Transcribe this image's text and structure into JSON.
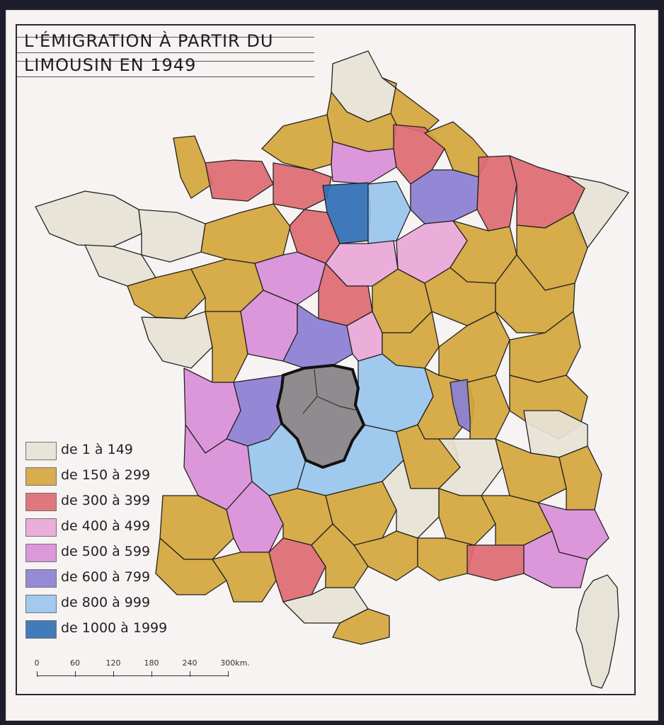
{
  "title": {
    "line1": "L'ÉMIGRATION À PARTIR DU",
    "line2": "LIMOUSIN EN 1949"
  },
  "legend": [
    {
      "label": "de 1 à 149",
      "color": "#e7e3d6"
    },
    {
      "label": "de 150 à 299",
      "color": "#d4a63c"
    },
    {
      "label": "de 300 à 399",
      "color": "#de6a72"
    },
    {
      "label": "de 400 à 499",
      "color": "#e9a7d8"
    },
    {
      "label": "de 500 à 599",
      "color": "#d98fd8"
    },
    {
      "label": "de 600 à 799",
      "color": "#8b7fd4"
    },
    {
      "label": "de 800 à 999",
      "color": "#98c6ee"
    },
    {
      "label": "de 1000 à 1999",
      "color": "#2f6fb6"
    }
  ],
  "scale": {
    "ticks": [
      "0",
      "60",
      "120",
      "180",
      "240",
      "300km."
    ]
  },
  "limousin_color": "#8f8b8e"
}
